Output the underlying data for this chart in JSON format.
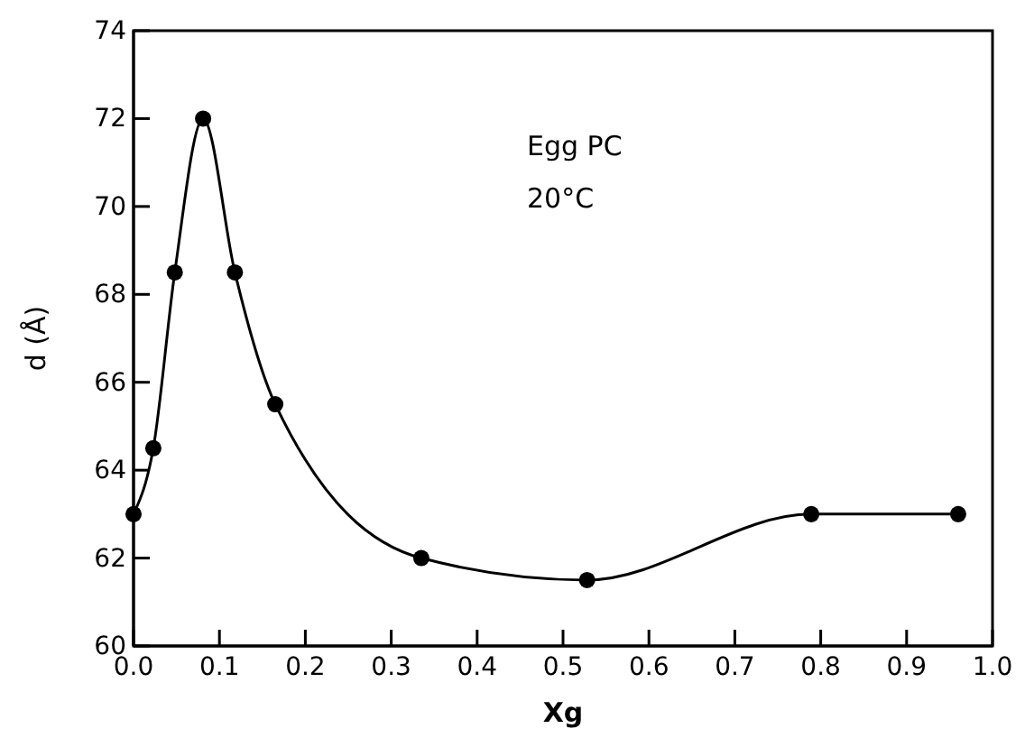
{
  "chart_data": {
    "type": "line",
    "xlabel": "Xg",
    "ylabel": "d (Å)",
    "annotations": [
      "Egg PC",
      "20°C"
    ],
    "x": [
      0.0,
      0.023,
      0.048,
      0.081,
      0.118,
      0.165,
      0.335,
      0.528,
      0.789,
      0.96
    ],
    "series": [
      {
        "color": "#000000",
        "values": [
          63,
          64.5,
          68.5,
          72,
          68.5,
          65.5,
          62,
          61.5,
          63,
          63
        ]
      }
    ],
    "xlim": [
      0,
      1
    ],
    "ylim": [
      60,
      74
    ],
    "xticks": [
      {
        "value": 0,
        "label": "0.0"
      },
      0.1,
      0.2,
      0.3,
      0.4,
      0.5,
      0.6,
      0.7,
      0.8,
      0.9,
      {
        "value": 1,
        "label": "1.0"
      }
    ],
    "yticks": [
      60,
      62,
      64,
      66,
      68,
      70,
      72,
      74
    ],
    "marker": "circle",
    "line_style": "solid",
    "grid": false
  }
}
